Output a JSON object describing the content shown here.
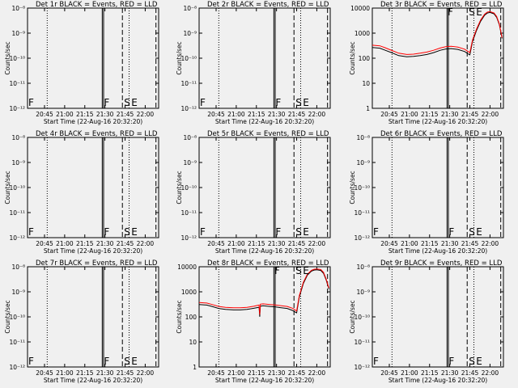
{
  "chart_data": [
    {
      "type": "line",
      "title": "Det 1r BLACK = Events, RED = LLD",
      "xlabel": "Start Time (22-Aug-16 20:32:20)",
      "ylabel": "Counts/sec",
      "yscale": "log",
      "ylim": [
        1e-12,
        1e-08
      ],
      "yticks": [
        "10⁻¹²",
        "10⁻¹¹",
        "10⁻¹⁰",
        "10⁻⁹",
        "10⁻⁸"
      ],
      "xlim": [
        "20:32:20",
        "22:10:00"
      ],
      "xticks": [
        "20:45",
        "21:00",
        "21:15",
        "21:30",
        "21:45",
        "22:00"
      ],
      "markers": [
        "F",
        "S",
        "E"
      ],
      "series": []
    },
    {
      "type": "line",
      "title": "Det 2r BLACK = Events, RED = LLD",
      "xlabel": "Start Time (22-Aug-16 20:32:20)",
      "ylabel": "Counts/sec",
      "yscale": "log",
      "ylim": [
        1e-12,
        1e-08
      ],
      "yticks": [
        "10⁻¹²",
        "10⁻¹¹",
        "10⁻¹⁰",
        "10⁻⁹",
        "10⁻⁸"
      ],
      "xlim": [
        "20:32:20",
        "22:10:00"
      ],
      "xticks": [
        "20:45",
        "21:00",
        "21:15",
        "21:30",
        "21:45",
        "22:00"
      ],
      "markers": [
        "F",
        "S",
        "E"
      ],
      "series": []
    },
    {
      "type": "line",
      "title": "Det 3r BLACK = Events, RED = LLD",
      "xlabel": "Start Time (22-Aug-16 20:32:20)",
      "ylabel": "Counts/sec",
      "yscale": "log",
      "ylim": [
        1,
        12000
      ],
      "yticks": [
        "1",
        "10",
        "100",
        "1000",
        "10000"
      ],
      "xlim": [
        "20:32:20",
        "22:10:00"
      ],
      "xticks": [
        "20:45",
        "21:00",
        "21:15",
        "21:30",
        "21:45",
        "22:00"
      ],
      "markers": [
        "F",
        "S",
        "E"
      ],
      "series": [
        {
          "name": "BLACK = Events",
          "color": "#000000",
          "x": [
            "20:32:20",
            "20:38",
            "20:42",
            "20:47",
            "20:52",
            "20:58",
            "21:03",
            "21:08",
            "21:13",
            "21:18",
            "21:23",
            "21:27",
            "21:31",
            "21:36",
            "21:41",
            "21:44",
            "21:45",
            "21:47",
            "21:50",
            "21:53",
            "21:56",
            "21:58",
            "22:00",
            "22:03",
            "22:05",
            "22:07",
            "22:09"
          ],
          "y": [
            300,
            280,
            230,
            180,
            140,
            125,
            130,
            140,
            155,
            185,
            230,
            260,
            270,
            250,
            205,
            160,
            150,
            520,
            1500,
            3500,
            6200,
            7500,
            8000,
            7000,
            5000,
            2500,
            700
          ]
        },
        {
          "name": "RED = LLD",
          "color": "#ff0000",
          "x": [
            "20:32:20",
            "20:38",
            "20:42",
            "20:47",
            "20:52",
            "20:58",
            "21:03",
            "21:08",
            "21:13",
            "21:18",
            "21:23",
            "21:27",
            "21:31",
            "21:36",
            "21:41",
            "21:44",
            "21:45",
            "21:47",
            "21:50",
            "21:53",
            "21:56",
            "21:58",
            "22:00",
            "22:03",
            "22:05",
            "22:07",
            "22:09"
          ],
          "y": [
            370,
            350,
            290,
            225,
            175,
            155,
            160,
            175,
            195,
            230,
            285,
            320,
            335,
            310,
            255,
            200,
            185,
            600,
            1700,
            3900,
            6800,
            8200,
            8600,
            7600,
            5400,
            2700,
            750
          ]
        }
      ]
    },
    {
      "type": "line",
      "title": "Det 4r BLACK = Events, RED = LLD",
      "xlabel": "Start Time (22-Aug-16 20:32:20)",
      "ylabel": "Counts/sec",
      "yscale": "log",
      "ylim": [
        1e-12,
        1e-08
      ],
      "yticks": [
        "10⁻¹²",
        "10⁻¹¹",
        "10⁻¹⁰",
        "10⁻⁹",
        "10⁻⁸"
      ],
      "xlim": [
        "20:32:20",
        "22:10:00"
      ],
      "xticks": [
        "20:45",
        "21:00",
        "21:15",
        "21:30",
        "21:45",
        "22:00"
      ],
      "markers": [
        "F",
        "S",
        "E"
      ],
      "series": []
    },
    {
      "type": "line",
      "title": "Det 5r BLACK = Events, RED = LLD",
      "xlabel": "Start Time (22-Aug-16 20:32:20)",
      "ylabel": "Counts/sec",
      "yscale": "log",
      "ylim": [
        1e-12,
        1e-08
      ],
      "yticks": [
        "10⁻¹²",
        "10⁻¹¹",
        "10⁻¹⁰",
        "10⁻⁹",
        "10⁻⁸"
      ],
      "xlim": [
        "20:32:20",
        "22:10:00"
      ],
      "xticks": [
        "20:45",
        "21:00",
        "21:15",
        "21:30",
        "21:45",
        "22:00"
      ],
      "markers": [
        "F",
        "S",
        "E"
      ],
      "series": []
    },
    {
      "type": "line",
      "title": "Det 6r BLACK = Events, RED = LLD",
      "xlabel": "Start Time (22-Aug-16 20:32:20)",
      "ylabel": "Counts/sec",
      "yscale": "log",
      "ylim": [
        1e-12,
        1e-08
      ],
      "yticks": [
        "10⁻¹²",
        "10⁻¹¹",
        "10⁻¹⁰",
        "10⁻⁹",
        "10⁻⁸"
      ],
      "xlim": [
        "20:32:20",
        "22:10:00"
      ],
      "xticks": [
        "20:45",
        "21:00",
        "21:15",
        "21:30",
        "21:45",
        "22:00"
      ],
      "markers": [
        "F",
        "S",
        "E"
      ],
      "series": []
    },
    {
      "type": "line",
      "title": "Det 7r BLACK = Events, RED = LLD",
      "xlabel": "Start Time (22-Aug-16 20:32:20)",
      "ylabel": "Counts/sec",
      "yscale": "log",
      "ylim": [
        1e-12,
        1e-08
      ],
      "yticks": [
        "10⁻¹²",
        "10⁻¹¹",
        "10⁻¹⁰",
        "10⁻⁹",
        "10⁻⁸"
      ],
      "xlim": [
        "20:32:20",
        "22:10:00"
      ],
      "xticks": [
        "20:45",
        "21:00",
        "21:15",
        "21:30",
        "21:45",
        "22:00"
      ],
      "markers": [
        "F",
        "S",
        "E"
      ],
      "series": []
    },
    {
      "type": "line",
      "title": "Det 8r BLACK = Events, RED = LLD",
      "xlabel": "Start Time (22-Aug-16 20:32:20)",
      "ylabel": "Counts/sec",
      "yscale": "log",
      "ylim": [
        1,
        12000
      ],
      "yticks": [
        "1",
        "10",
        "100",
        "1000",
        "10000"
      ],
      "xlim": [
        "20:32:20",
        "22:10:00"
      ],
      "xticks": [
        "20:45",
        "21:00",
        "21:15",
        "21:30",
        "21:45",
        "22:00"
      ],
      "markers": [
        "F",
        "S",
        "E"
      ],
      "series": [
        {
          "name": "BLACK = Events",
          "color": "#000000",
          "x": [
            "20:32:20",
            "20:38",
            "20:42",
            "20:47",
            "20:52",
            "20:58",
            "21:03",
            "21:08",
            "21:13",
            "21:17",
            "21:17:30",
            "21:18",
            "21:20",
            "21:25",
            "21:29",
            "21:33",
            "21:38",
            "21:42",
            "21:44",
            "21:45",
            "21:47",
            "21:50",
            "21:53",
            "21:56",
            "21:58",
            "22:00",
            "22:03",
            "22:05",
            "22:07",
            "22:09"
          ],
          "y": [
            350,
            330,
            290,
            240,
            220,
            210,
            210,
            220,
            245,
            270,
            110,
            300,
            310,
            290,
            280,
            260,
            240,
            200,
            170,
            160,
            700,
            2500,
            5500,
            8000,
            8800,
            9000,
            8500,
            6500,
            3500,
            1500
          ]
        },
        {
          "name": "RED = LLD",
          "color": "#ff0000",
          "x": [
            "20:32:20",
            "20:38",
            "20:42",
            "20:47",
            "20:52",
            "20:58",
            "21:03",
            "21:08",
            "21:13",
            "21:17",
            "21:17:30",
            "21:18",
            "21:20",
            "21:25",
            "21:29",
            "21:33",
            "21:38",
            "21:42",
            "21:44",
            "21:45",
            "21:47",
            "21:50",
            "21:53",
            "21:56",
            "21:58",
            "22:00",
            "22:03",
            "22:05",
            "22:07",
            "22:09"
          ],
          "y": [
            420,
            400,
            350,
            290,
            265,
            255,
            255,
            265,
            295,
            330,
            135,
            360,
            370,
            350,
            335,
            315,
            290,
            245,
            205,
            190,
            800,
            2800,
            6000,
            8600,
            9500,
            9800,
            9200,
            7100,
            3800,
            1650
          ]
        }
      ]
    },
    {
      "type": "line",
      "title": "Det 9r BLACK = Events, RED = LLD",
      "xlabel": "Start Time (22-Aug-16 20:32:20)",
      "ylabel": "Counts/sec",
      "yscale": "log",
      "ylim": [
        1e-12,
        1e-08
      ],
      "yticks": [
        "10⁻¹²",
        "10⁻¹¹",
        "10⁻¹⁰",
        "10⁻⁹",
        "10⁻⁸"
      ],
      "xlim": [
        "20:32:20",
        "22:10:00"
      ],
      "xticks": [
        "20:45",
        "21:00",
        "21:15",
        "21:30",
        "21:45",
        "22:00"
      ],
      "markers": [
        "F",
        "S",
        "E"
      ],
      "series": []
    }
  ]
}
